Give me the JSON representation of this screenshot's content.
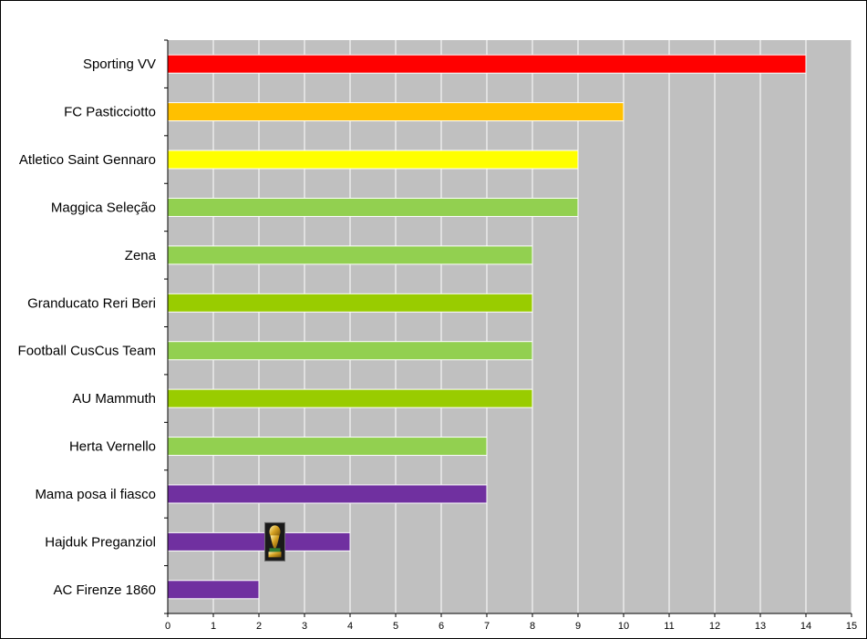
{
  "chart_data": {
    "type": "bar",
    "orientation": "horizontal",
    "categories": [
      "Sporting VV",
      "FC Pasticciotto",
      "Atletico Saint Gennaro",
      "Maggica Seleção",
      "Zena",
      "Granducato Reri Beri",
      "Football CusCus Team",
      "AU Mammuth",
      "Herta Vernello",
      "Mama posa il fiasco",
      "Hajduk Preganziol",
      "AC Firenze 1860"
    ],
    "values": [
      14,
      10,
      9,
      9,
      8,
      8,
      8,
      8,
      7,
      7,
      4,
      2
    ],
    "bar_colors": [
      "#ff0000",
      "#ffc000",
      "#ffff00",
      "#92d050",
      "#92d050",
      "#99cc00",
      "#92d050",
      "#99cc00",
      "#92d050",
      "#7030a0",
      "#7030a0",
      "#7030a0"
    ],
    "xlim": [
      0,
      15
    ],
    "x_ticks": [
      0,
      1,
      2,
      3,
      4,
      5,
      6,
      7,
      8,
      9,
      10,
      11,
      12,
      13,
      14,
      15
    ],
    "grid": true,
    "plot_background": "#c0c0c0",
    "gridline_color": "#ffffff",
    "legend": "none",
    "annotations": [
      {
        "type": "trophy-icon",
        "category": "Hajduk Preganziol",
        "x": 2.35
      }
    ],
    "title": "",
    "xlabel": "",
    "ylabel": ""
  }
}
